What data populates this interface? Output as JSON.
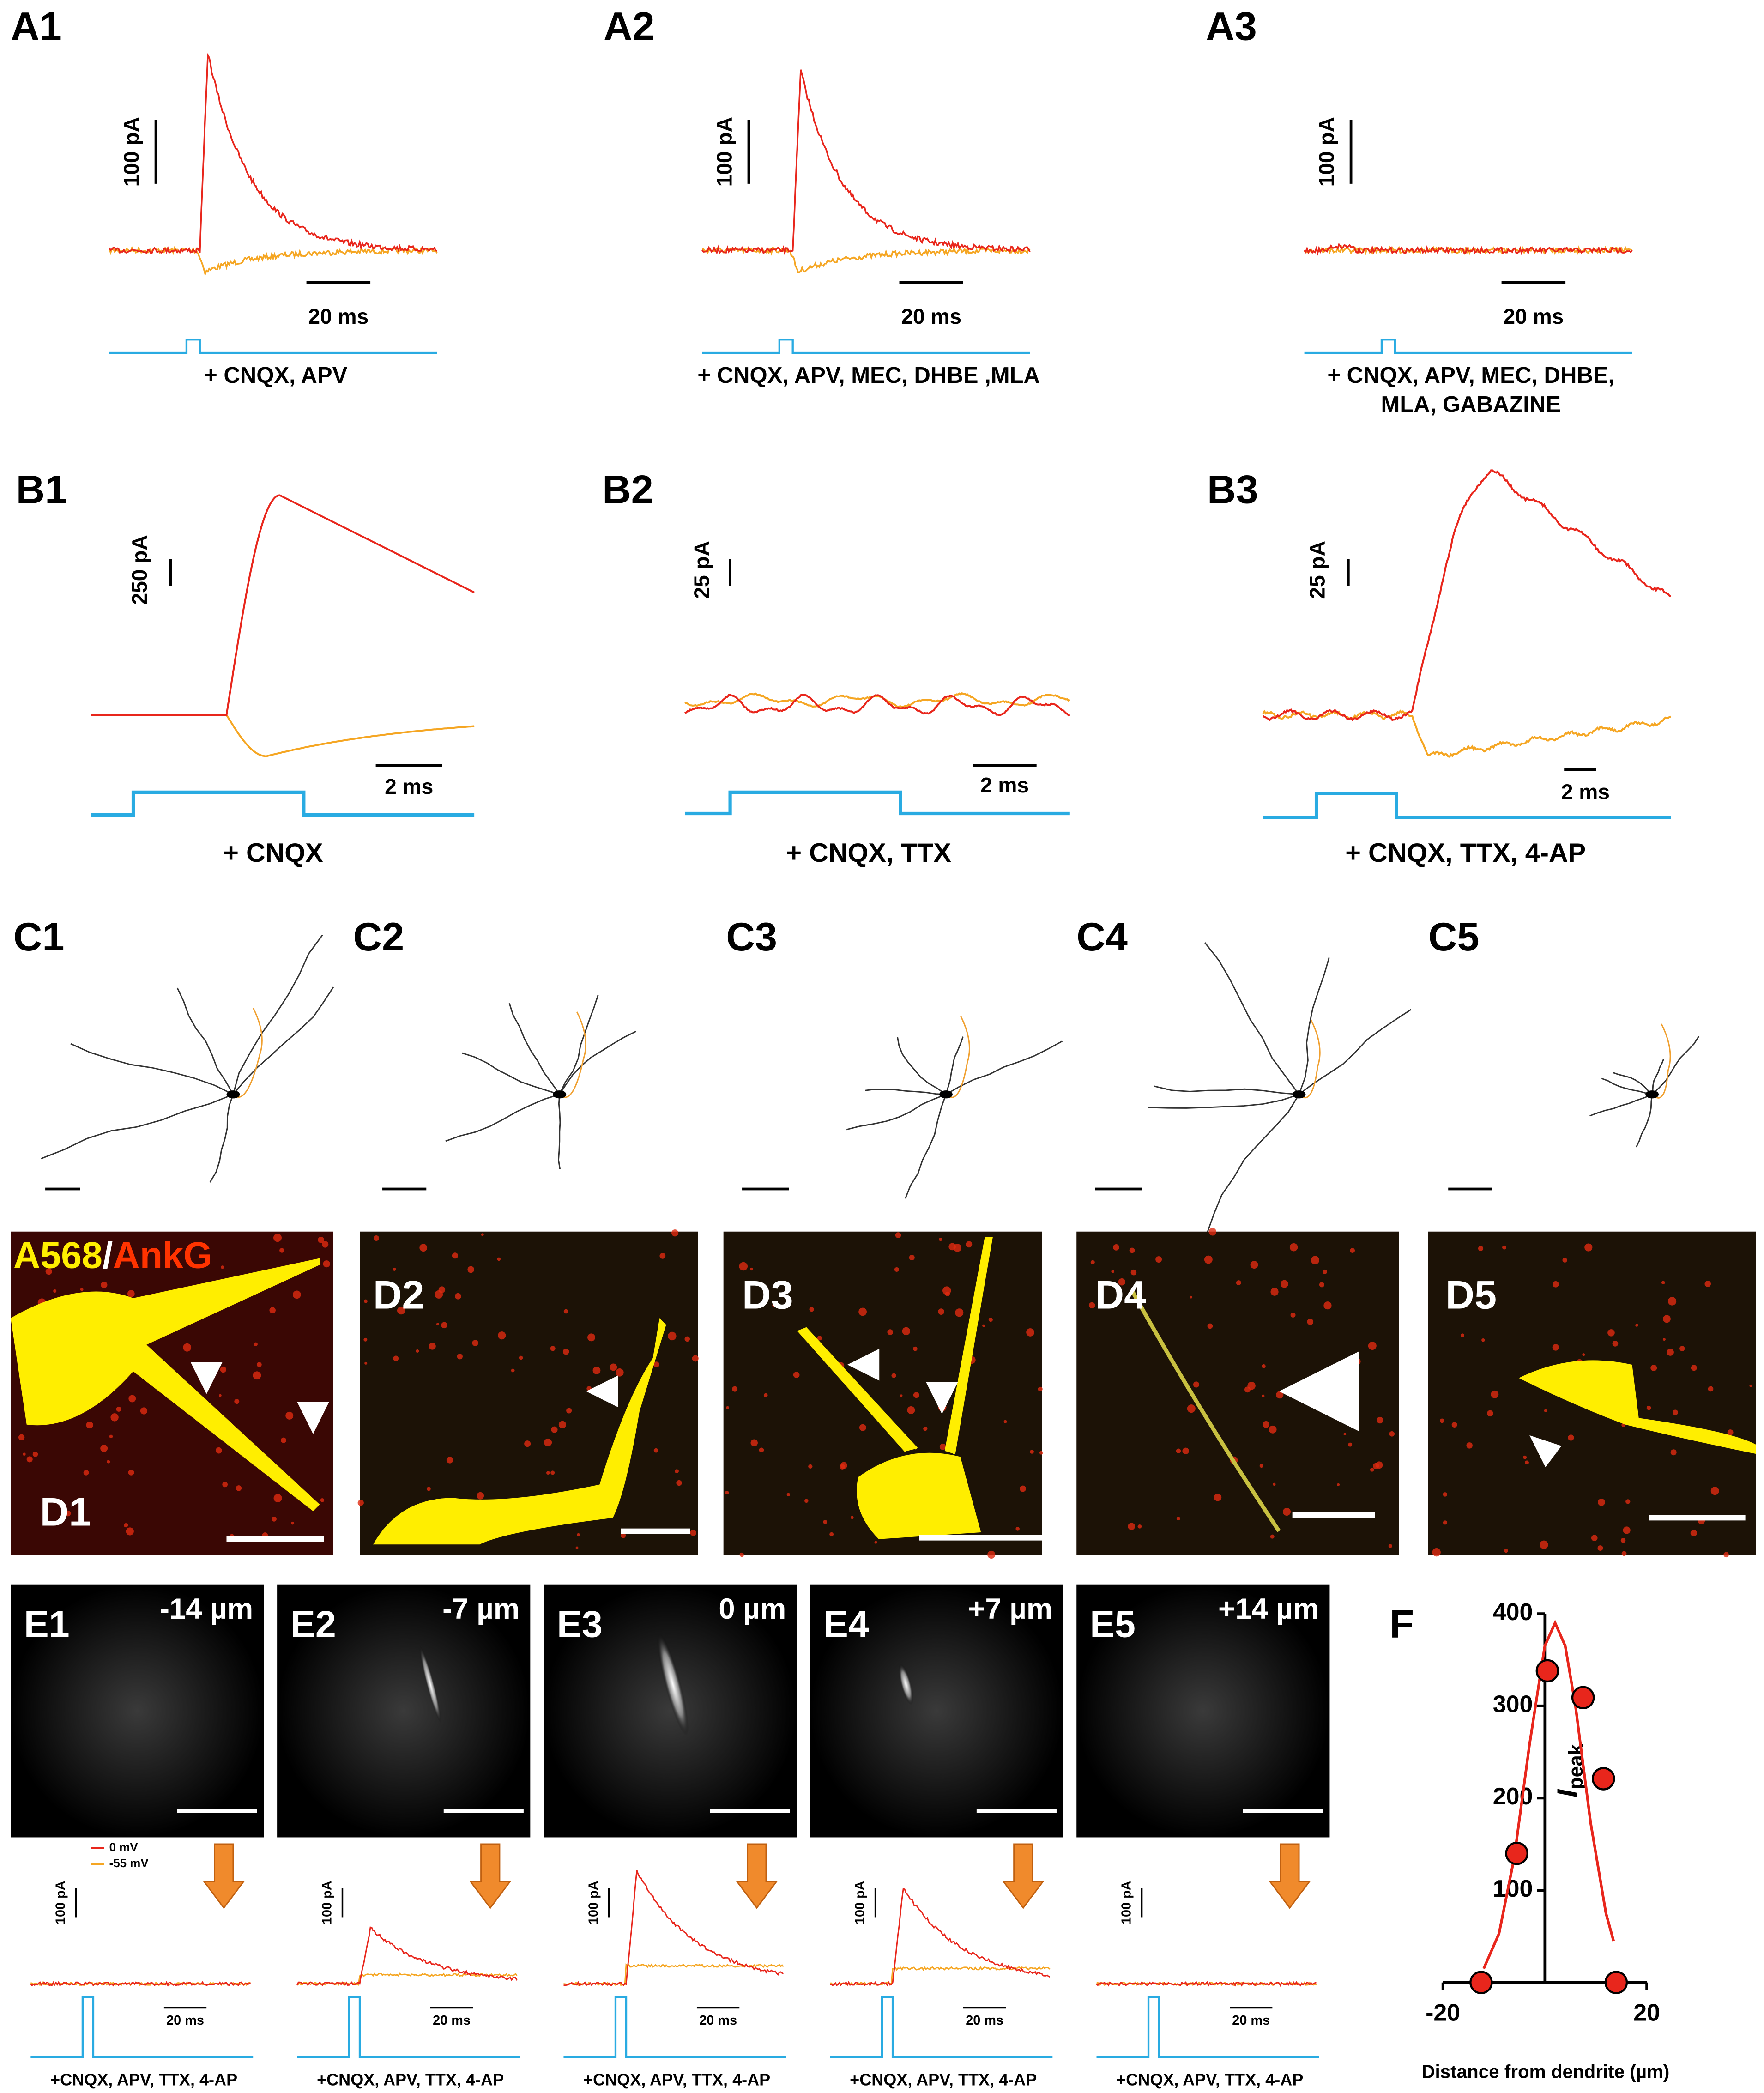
{
  "panels_a": [
    {
      "label": "A1",
      "current_scale": "100 pA",
      "time_scale": "20 ms",
      "condition": [
        "+ CNQX, APV"
      ]
    },
    {
      "label": "A2",
      "current_scale": "100 pA",
      "time_scale": "20 ms",
      "condition": [
        "+ CNQX, APV, MEC, DHBE ,MLA"
      ]
    },
    {
      "label": "A3",
      "current_scale": "100 pA",
      "time_scale": "20 ms",
      "condition": [
        "+ CNQX, APV, MEC, DHBE,",
        "MLA, GABAZINE"
      ]
    }
  ],
  "panels_b": [
    {
      "label": "B1",
      "current_scale": "250 pA",
      "time_scale": "2 ms",
      "condition": "+ CNQX"
    },
    {
      "label": "B2",
      "current_scale": "25 pA",
      "time_scale": "2 ms",
      "condition": "+ CNQX, TTX"
    },
    {
      "label": "B3",
      "current_scale": "25 pA",
      "time_scale": "2 ms",
      "condition": "+ CNQX, TTX, 4-AP"
    }
  ],
  "panels_c": [
    "C1",
    "C2",
    "C3",
    "C4",
    "C5"
  ],
  "panels_d": {
    "stain": [
      "A568",
      "/",
      "AnkG"
    ],
    "labels": [
      "D1",
      "D2",
      "D3",
      "D4",
      "D5"
    ]
  },
  "panels_e": {
    "legend": [
      "0 mV",
      "-55 mV"
    ],
    "panels": [
      {
        "label": "E1",
        "depth": "-14 µm",
        "current_scale": "100 pA",
        "time_scale": "20 ms",
        "condition": "+CNQX, APV, TTX, 4-AP"
      },
      {
        "label": "E2",
        "depth": "-7 µm",
        "current_scale": "100 pA",
        "time_scale": "20 ms",
        "condition": "+CNQX, APV, TTX, 4-AP"
      },
      {
        "label": "E3",
        "depth": "0 µm",
        "current_scale": "100 pA",
        "time_scale": "20 ms",
        "condition": "+CNQX, APV, TTX, 4-AP"
      },
      {
        "label": "E4",
        "depth": "+7 µm",
        "current_scale": "100 pA",
        "time_scale": "20 ms",
        "condition": "+CNQX, APV, TTX, 4-AP"
      },
      {
        "label": "E5",
        "depth": "+14 µm",
        "current_scale": "100 pA",
        "time_scale": "20 ms",
        "condition": "+CNQX, APV, TTX, 4-AP"
      }
    ]
  },
  "chart_data": {
    "type": "scatter",
    "label": "F",
    "x": [
      -12.5,
      -5.5,
      0.5,
      7.5,
      11.5,
      14
    ],
    "values": [
      0,
      140,
      338,
      309,
      221,
      0
    ],
    "color": "#e8261c",
    "fit": {
      "x": [
        -12,
        -9,
        -6,
        -3,
        0,
        2,
        4,
        6,
        9,
        12,
        13.5
      ],
      "values": [
        15,
        53,
        135,
        258,
        365,
        390,
        365,
        300,
        173,
        75,
        45
      ]
    },
    "xlim": [
      -20,
      20
    ],
    "ylim": [
      0,
      400
    ],
    "xticks": [
      -20,
      20
    ],
    "yticks": [
      100,
      200,
      300,
      400
    ],
    "xlabel": "Distance from dendrite (µm)",
    "ylabel": {
      "main": "I",
      "sub": "peak"
    }
  }
}
